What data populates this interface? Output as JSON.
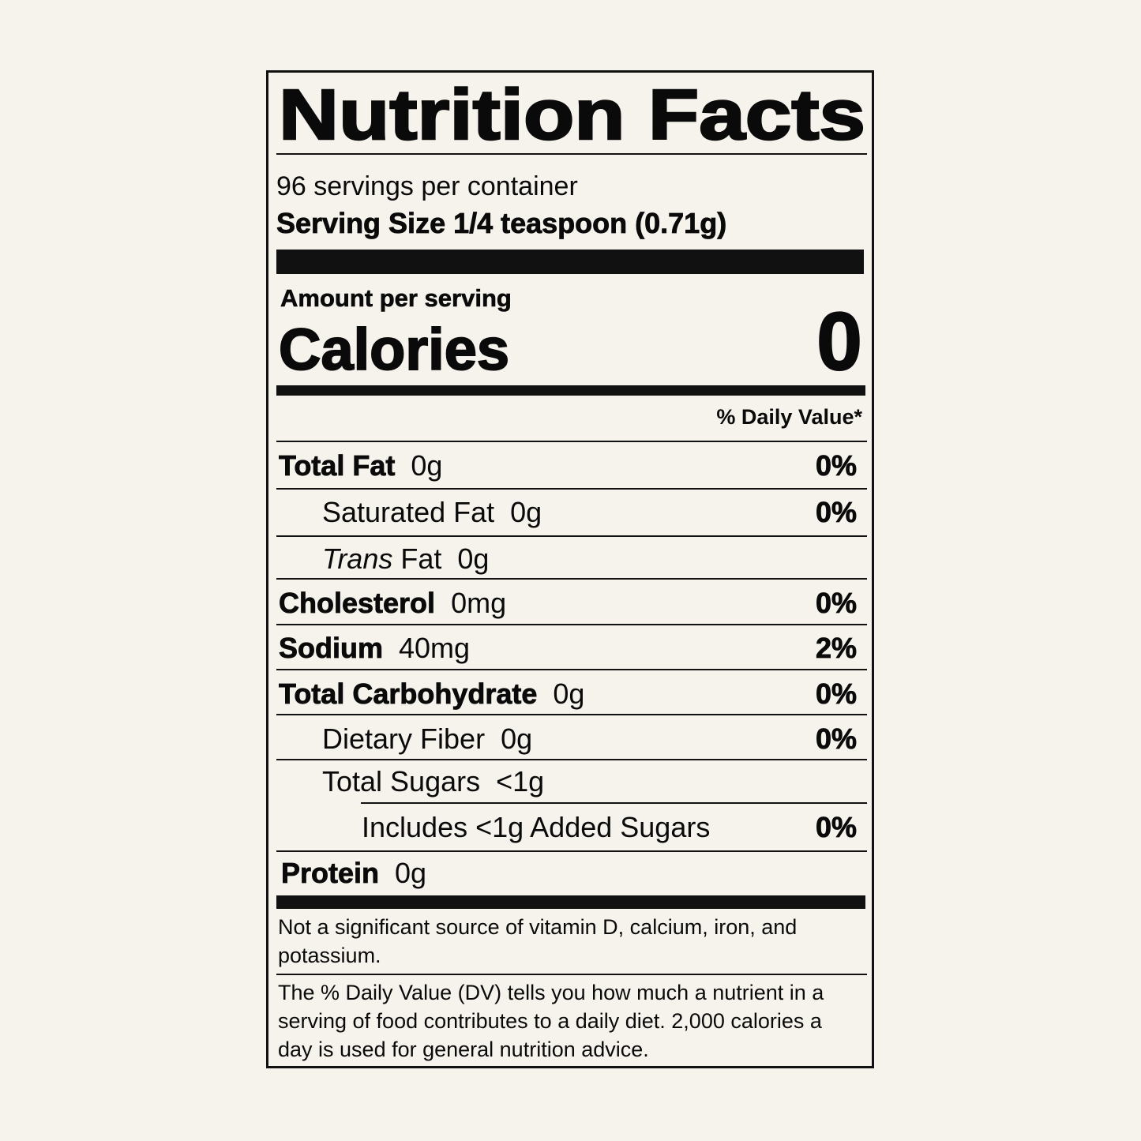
{
  "title": "Nutrition Facts",
  "servings_per_container": "96 servings per container",
  "serving_size": "Serving Size 1/4 teaspoon (0.71g)",
  "amount_per_serving": "Amount per serving",
  "calories_label": "Calories",
  "calories_value": "0",
  "daily_value_header": "% Daily Value*",
  "nutrients": [
    {
      "name": "Total Fat",
      "amount": "0g",
      "dv": "0%"
    },
    {
      "name": "Saturated Fat",
      "amount": "0g",
      "dv": "0%"
    },
    {
      "name_italic": "Trans",
      "name": "Fat",
      "amount": "0g",
      "dv": ""
    },
    {
      "name": "Cholesterol",
      "amount": "0mg",
      "dv": "0%"
    },
    {
      "name": "Sodium",
      "amount": "40mg",
      "dv": "2%"
    },
    {
      "name": "Total Carbohydrate",
      "amount": "0g",
      "dv": "0%"
    },
    {
      "name": "Dietary Fiber",
      "amount": "0g",
      "dv": "0%"
    },
    {
      "name": "Total Sugars",
      "amount": "<1g",
      "dv": ""
    },
    {
      "name": "Includes <1g Added Sugars",
      "amount": "",
      "dv": "0%"
    },
    {
      "name": "Protein",
      "amount": "0g",
      "dv": ""
    }
  ],
  "footnote_vitamins": "Not a significant source of vitamin D, calcium, iron, and potassium.",
  "footnote_dv": "The % Daily Value (DV) tells you how much a nutrient in a serving of food contributes to a daily diet. 2,000 calories a day is used for general nutrition advice."
}
